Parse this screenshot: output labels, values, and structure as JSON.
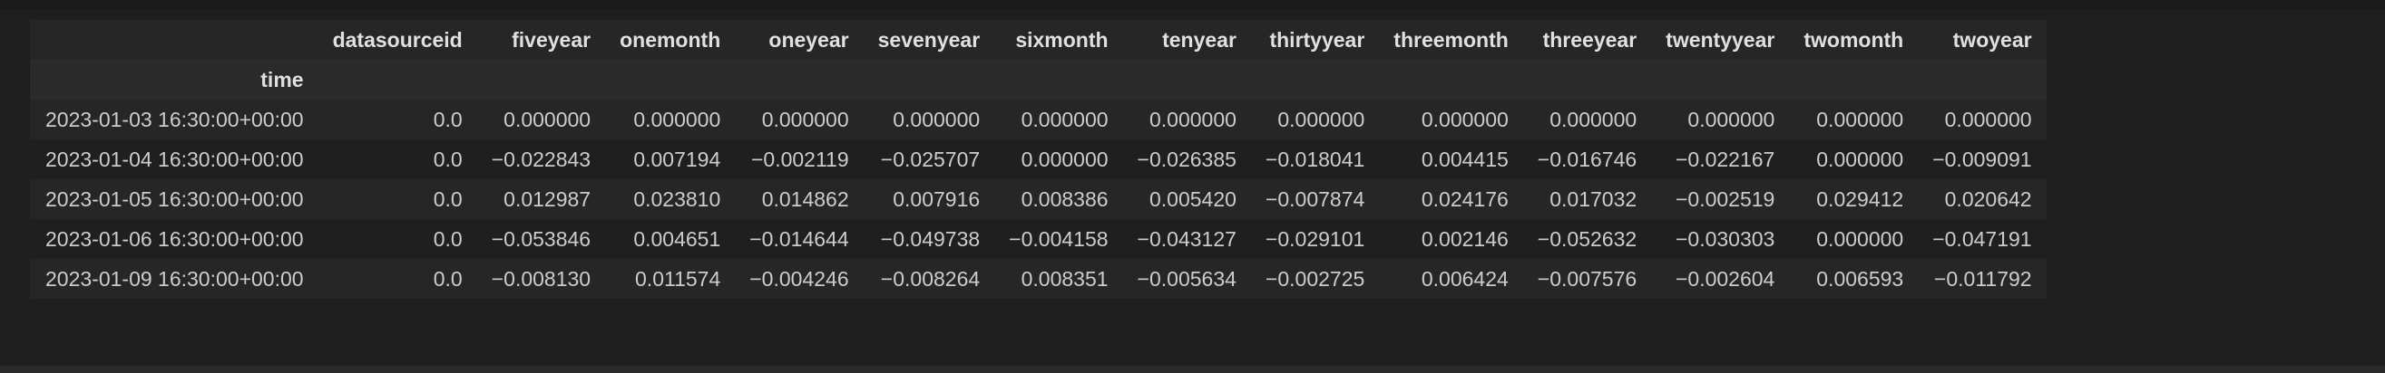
{
  "table": {
    "columns": [
      "datasourceid",
      "fiveyear",
      "onemonth",
      "oneyear",
      "sevenyear",
      "sixmonth",
      "tenyear",
      "thirtyyear",
      "threemonth",
      "threeyear",
      "twentyyear",
      "twomonth",
      "twoyear"
    ],
    "index_name": "time",
    "rows": [
      {
        "index": "2023-01-03 16:30:00+00:00",
        "values": [
          "0.0",
          "0.000000",
          "0.000000",
          "0.000000",
          "0.000000",
          "0.000000",
          "0.000000",
          "0.000000",
          "0.000000",
          "0.000000",
          "0.000000",
          "0.000000",
          "0.000000"
        ]
      },
      {
        "index": "2023-01-04 16:30:00+00:00",
        "values": [
          "0.0",
          "−0.022843",
          "0.007194",
          "−0.002119",
          "−0.025707",
          "0.000000",
          "−0.026385",
          "−0.018041",
          "0.004415",
          "−0.016746",
          "−0.022167",
          "0.000000",
          "−0.009091"
        ]
      },
      {
        "index": "2023-01-05 16:30:00+00:00",
        "values": [
          "0.0",
          "0.012987",
          "0.023810",
          "0.014862",
          "0.007916",
          "0.008386",
          "0.005420",
          "−0.007874",
          "0.024176",
          "0.017032",
          "−0.002519",
          "0.029412",
          "0.020642"
        ]
      },
      {
        "index": "2023-01-06 16:30:00+00:00",
        "values": [
          "0.0",
          "−0.053846",
          "0.004651",
          "−0.014644",
          "−0.049738",
          "−0.004158",
          "−0.043127",
          "−0.029101",
          "0.002146",
          "−0.052632",
          "−0.030303",
          "0.000000",
          "−0.047191"
        ]
      },
      {
        "index": "2023-01-09 16:30:00+00:00",
        "values": [
          "0.0",
          "−0.008130",
          "0.011574",
          "−0.004246",
          "−0.008264",
          "0.008351",
          "−0.005634",
          "−0.002725",
          "0.006424",
          "−0.007576",
          "−0.002604",
          "0.006593",
          "−0.011792"
        ]
      }
    ]
  }
}
